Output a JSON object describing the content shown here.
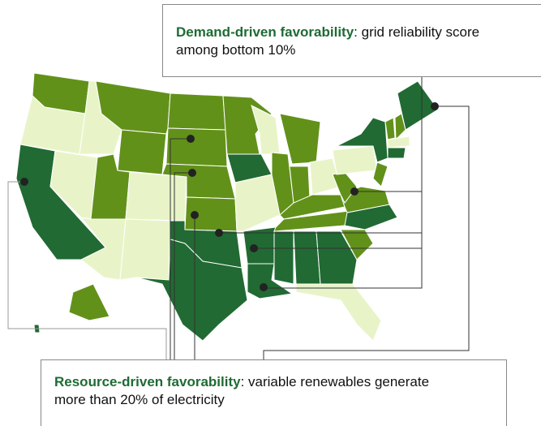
{
  "callouts": [
    {
      "title": "Demand-driven favorability",
      "text": ": grid reliability score among bottom 10%"
    },
    {
      "title": "Resource-driven favorability",
      "text": ": variable renewables generate more than 20% of electricity"
    }
  ]
}
